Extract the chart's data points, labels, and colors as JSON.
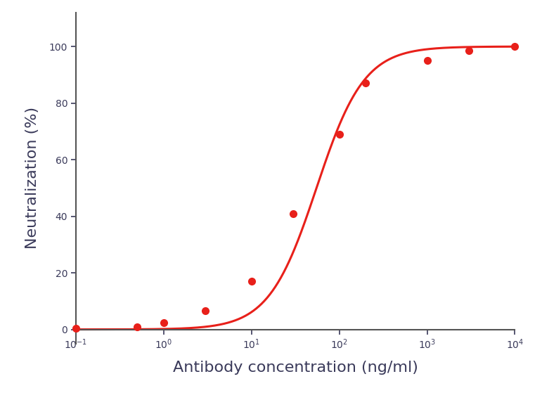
{
  "xlabel": "Antibody concentration (ng/ml)",
  "ylabel": "Neutralization (%)",
  "curve_color": "#e8201a",
  "marker_color": "#e8201a",
  "line_width": 2.2,
  "marker_size": 7,
  "axis_color": "#555555",
  "tick_color": "#3a3a5a",
  "label_color": "#3a3a5a",
  "data_points_x": [
    0.1,
    0.5,
    1.0,
    3.0,
    10.0,
    30.0,
    100.0,
    200.0,
    1000.0,
    3000.0,
    10000.0
  ],
  "data_points_y": [
    0.5,
    1.0,
    2.5,
    6.5,
    17.0,
    41.0,
    69.0,
    87.0,
    95.0,
    98.5,
    100.0
  ],
  "xlim_log": [
    -1,
    4
  ],
  "ylim": [
    -5,
    112
  ],
  "yticks": [
    0,
    20,
    40,
    60,
    80,
    100
  ],
  "xtick_positions": [
    0.1,
    1,
    10,
    100,
    1000,
    10000
  ],
  "background_color": "#ffffff",
  "spine_color": "#555555",
  "spine_linewidth": 1.5
}
